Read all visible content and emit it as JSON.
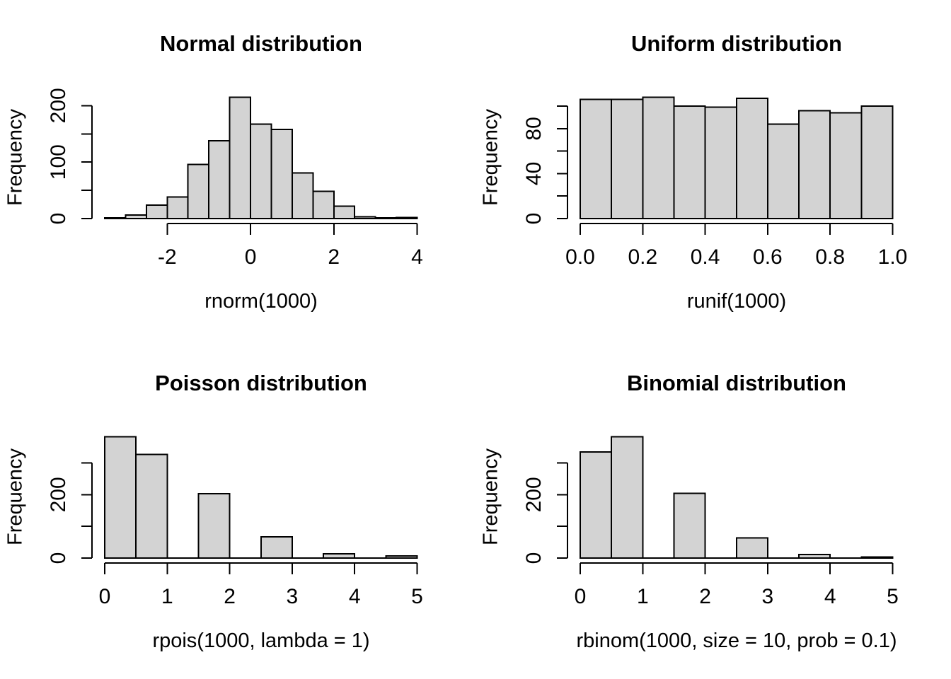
{
  "figure": {
    "background": "#ffffff",
    "layout": "2x2 histogram grid (R base graphics)"
  },
  "colors": {
    "bar_fill": "#d3d3d3",
    "stroke": "#000000",
    "text": "#000000"
  },
  "chart_data": [
    {
      "type": "bar",
      "subtype": "histogram",
      "title": "Normal distribution",
      "xlabel": "rnorm(1000)",
      "ylabel": "Frequency",
      "bin_start": -3.5,
      "bin_width": 0.5,
      "counts": [
        1,
        6,
        24,
        38,
        96,
        138,
        215,
        167,
        158,
        81,
        48,
        22,
        3,
        1,
        2
      ],
      "xlim": [
        -3.5,
        4
      ],
      "ylim": [
        0,
        215
      ],
      "x_ticks": [
        -2,
        0,
        2,
        4
      ],
      "x_tick_labels": [
        "-2",
        "0",
        "2",
        "4"
      ],
      "y_ticks": [
        0,
        50,
        100,
        150,
        200
      ],
      "y_tick_labels": [
        "0",
        "",
        "100",
        "",
        "200"
      ],
      "grid": false,
      "legend": "none"
    },
    {
      "type": "bar",
      "subtype": "histogram",
      "title": "Uniform distribution",
      "xlabel": "runif(1000)",
      "ylabel": "Frequency",
      "bin_start": 0,
      "bin_width": 0.1,
      "counts": [
        106,
        106,
        108,
        100,
        99,
        107,
        84,
        96,
        94,
        100
      ],
      "xlim": [
        0,
        1
      ],
      "ylim": [
        0,
        108
      ],
      "x_ticks": [
        0,
        0.2,
        0.4,
        0.6,
        0.8,
        1.0
      ],
      "x_tick_labels": [
        "0.0",
        "0.2",
        "0.4",
        "0.6",
        "0.8",
        "1.0"
      ],
      "y_ticks": [
        0,
        20,
        40,
        60,
        80,
        100
      ],
      "y_tick_labels": [
        "0",
        "",
        "40",
        "",
        "80",
        ""
      ],
      "grid": false,
      "legend": "none"
    },
    {
      "type": "bar",
      "subtype": "histogram",
      "title": "Poisson distribution",
      "xlabel": "rpois(1000, lambda = 1)",
      "ylabel": "Frequency",
      "bin_start": 0,
      "bin_width": 0.5,
      "counts": [
        383,
        327,
        0,
        203,
        0,
        67,
        0,
        13,
        0,
        7
      ],
      "xlim": [
        0,
        5
      ],
      "ylim": [
        0,
        383
      ],
      "x_ticks": [
        0,
        1,
        2,
        3,
        4,
        5
      ],
      "x_tick_labels": [
        "0",
        "1",
        "2",
        "3",
        "4",
        "5"
      ],
      "y_ticks": [
        0,
        100,
        200,
        300
      ],
      "y_tick_labels": [
        "0",
        "",
        "200",
        ""
      ],
      "grid": false,
      "legend": "none"
    },
    {
      "type": "bar",
      "subtype": "histogram",
      "title": "Binomial distribution",
      "xlabel": "rbinom(1000, size = 10, prob = 0.1)",
      "ylabel": "Frequency",
      "bin_start": 0,
      "bin_width": 0.5,
      "counts": [
        335,
        383,
        0,
        204,
        0,
        64,
        0,
        11,
        0,
        3
      ],
      "xlim": [
        0,
        5
      ],
      "ylim": [
        0,
        383
      ],
      "x_ticks": [
        0,
        1,
        2,
        3,
        4,
        5
      ],
      "x_tick_labels": [
        "0",
        "1",
        "2",
        "3",
        "4",
        "5"
      ],
      "y_ticks": [
        0,
        100,
        200,
        300
      ],
      "y_tick_labels": [
        "0",
        "",
        "200",
        ""
      ],
      "grid": false,
      "legend": "none"
    }
  ]
}
